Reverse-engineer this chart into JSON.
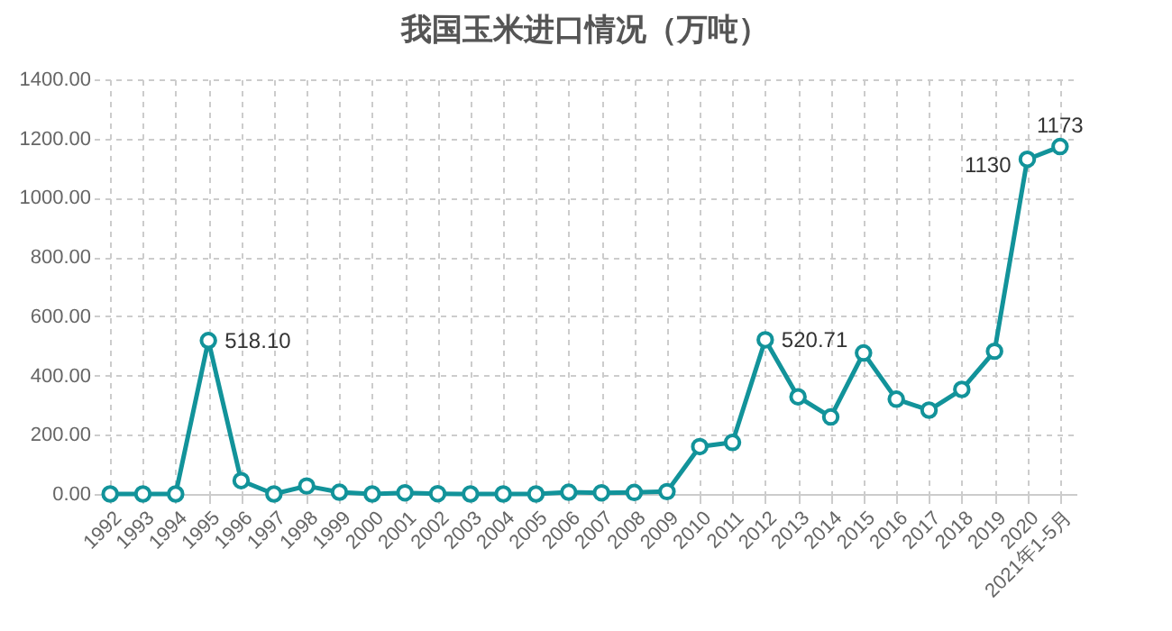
{
  "chart_data": {
    "type": "line",
    "title": "我国玉米进口情况（万吨）",
    "categories": [
      "1992",
      "1993",
      "1994",
      "1995",
      "1996",
      "1997",
      "1998",
      "1999",
      "2000",
      "2001",
      "2002",
      "2003",
      "2004",
      "2005",
      "2006",
      "2007",
      "2008",
      "2009",
      "2010",
      "2011",
      "2012",
      "2013",
      "2014",
      "2015",
      "2016",
      "2017",
      "2018",
      "2019",
      "2020",
      "2021年1-5月"
    ],
    "series": [
      {
        "color": "#12939a",
        "values": [
          0,
          0,
          0,
          518.1,
          45,
          0,
          27,
          6,
          0,
          4,
          1,
          0,
          0,
          0,
          6,
          4,
          5,
          8,
          160,
          174,
          520.71,
          328,
          260,
          476,
          320,
          283,
          353,
          482,
          1130,
          1173
        ],
        "value_labels": [
          null,
          null,
          null,
          "518.10",
          null,
          null,
          null,
          null,
          null,
          null,
          null,
          null,
          null,
          null,
          null,
          null,
          null,
          null,
          null,
          null,
          "520.71",
          null,
          null,
          null,
          null,
          null,
          null,
          null,
          "1130",
          "1173"
        ]
      }
    ],
    "ylim": [
      0,
      1400
    ],
    "yticks": [
      {
        "value": 0,
        "label": "0.00"
      },
      {
        "value": 200,
        "label": "200.00"
      },
      {
        "value": 400,
        "label": "400.00"
      },
      {
        "value": 600,
        "label": "600.00"
      },
      {
        "value": 800,
        "label": "800.00"
      },
      {
        "value": 1000,
        "label": "1000.00"
      },
      {
        "value": 1200,
        "label": "1200.00"
      },
      {
        "value": 1400,
        "label": "1400.00"
      }
    ],
    "grid": true,
    "marker": "circle",
    "line_style": "solid"
  }
}
